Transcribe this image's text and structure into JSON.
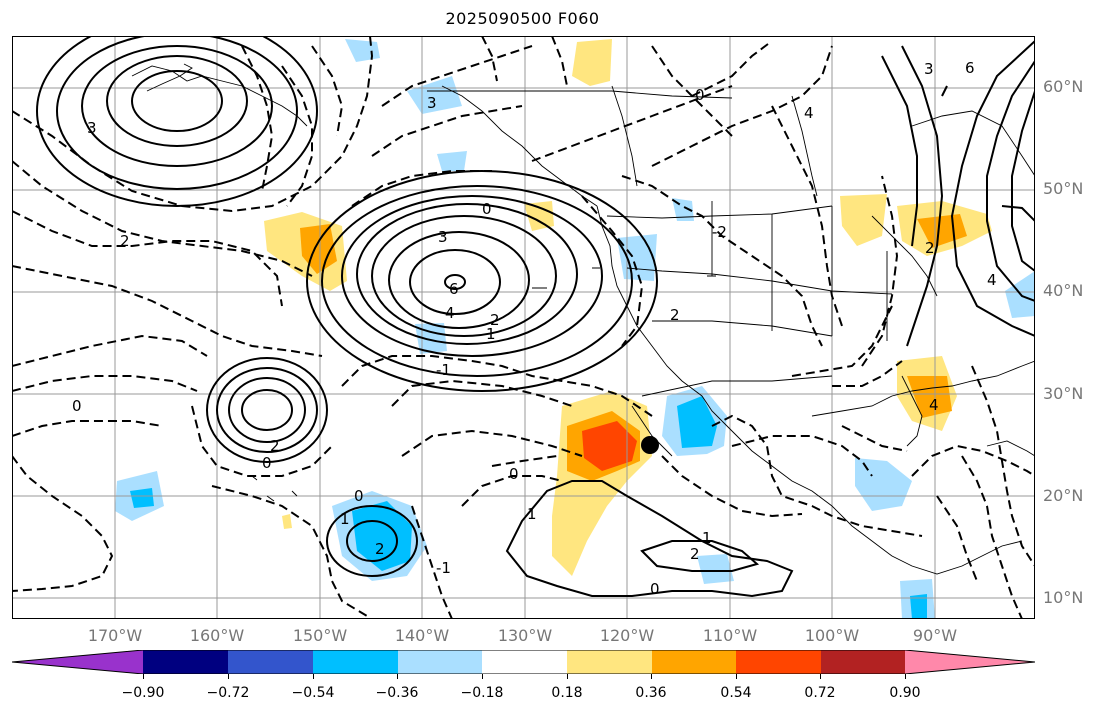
{
  "title": "2025090500 F060",
  "lat_labels": [
    "60°N",
    "50°N",
    "40°N",
    "30°N",
    "20°N",
    "10°N"
  ],
  "lon_labels": [
    "170°W",
    "160°W",
    "150°W",
    "140°W",
    "130°W",
    "120°W",
    "110°W",
    "100°W",
    "90°W"
  ],
  "colorbar": {
    "colors": [
      "#9932cc",
      "#000080",
      "#3355cc",
      "#00bfff",
      "#aadfff",
      "#ffffff",
      "#ffe680",
      "#ffa500",
      "#ff4500",
      "#b22222",
      "#ff88aa"
    ],
    "ticks": [
      "−0.90",
      "−0.72",
      "−0.54",
      "−0.36",
      "−0.18",
      "0.18",
      "0.36",
      "0.54",
      "0.72",
      "0.90"
    ]
  },
  "contour_labels": [
    "3",
    "6",
    "4",
    "1",
    "2",
    "0",
    "-1",
    "2",
    "3",
    "0",
    "2",
    "0",
    "1",
    "2",
    "0",
    "-1",
    "1",
    "0",
    "1",
    "2",
    "0",
    "4",
    "2",
    "4",
    "6",
    "3",
    "0",
    "4",
    "-2",
    "3",
    "2"
  ],
  "colors": {
    "contour": "#000000",
    "grid": "#999999",
    "tick_text": "#777777"
  }
}
